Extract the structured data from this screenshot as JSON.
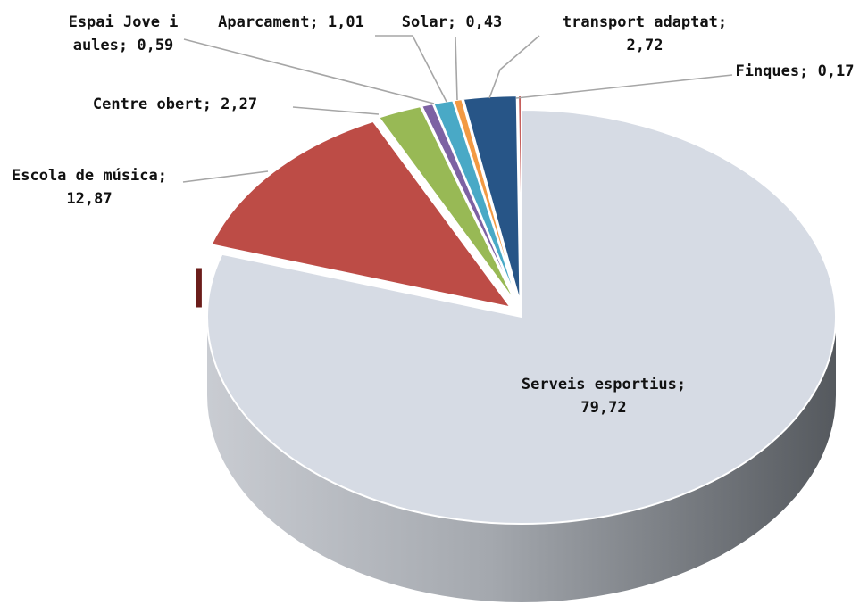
{
  "chart_data": {
    "type": "pie",
    "style": "3d-exploded",
    "title": "",
    "slices": [
      {
        "name": "Serveis esportius",
        "value": 79.72,
        "label_lines": [
          "Serveis esportius;",
          "79,72"
        ],
        "color": "#d6dbe4",
        "side_color": "#8e949c"
      },
      {
        "name": "Escola de música",
        "value": 12.87,
        "label_lines": [
          "Escola de música;",
          "12,87"
        ],
        "color": "#bd4c46",
        "side_color": "#6b1d1a"
      },
      {
        "name": "Centre obert",
        "value": 2.27,
        "label_lines": [
          "Centre obert; 2,27"
        ],
        "color": "#98b955",
        "side_color": "#5c7430"
      },
      {
        "name": "Espai Jove i aules",
        "value": 0.59,
        "label_lines": [
          "Espai Jove i",
          "aules; 0,59"
        ],
        "color": "#7d62a3",
        "side_color": "#4a3a62"
      },
      {
        "name": "Aparcament",
        "value": 1.01,
        "label_lines": [
          "Aparcament; 1,01"
        ],
        "color": "#49a9c6",
        "side_color": "#2a6578"
      },
      {
        "name": "Solar",
        "value": 0.43,
        "label_lines": [
          "Solar; 0,43"
        ],
        "color": "#f39a43",
        "side_color": "#9a5a1c"
      },
      {
        "name": "transport adaptat",
        "value": 2.72,
        "label_lines": [
          "transport adaptat;",
          "2,72"
        ],
        "color": "#275587",
        "side_color": "#14304f"
      },
      {
        "name": "Finques",
        "value": 0.17,
        "label_lines": [
          "Finques; 0,17"
        ],
        "color": "#c0504d",
        "side_color": "#6b1d1a"
      }
    ],
    "legend": "none"
  }
}
